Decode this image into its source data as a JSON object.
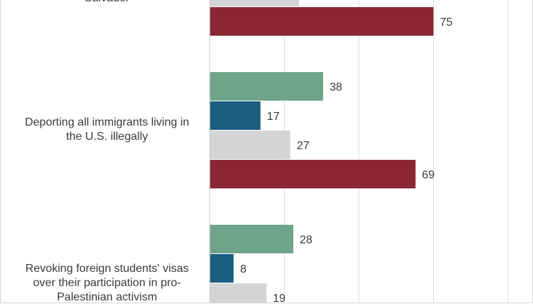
{
  "chart_data": {
    "type": "bar",
    "orientation": "horizontal",
    "categories": [
      "Salvador",
      "Deporting all immigrants living in\nthe U.S. illegally",
      "Revoking foreign students' visas\nover their participation in pro-\nPalestinian activism"
    ],
    "series": [
      {
        "color": "#6fa48a",
        "values": [
          null,
          38,
          28
        ]
      },
      {
        "color": "#1a5e80",
        "values": [
          null,
          17,
          8
        ]
      },
      {
        "color": "#d4d4d4",
        "values": [
          null,
          27,
          19
        ]
      },
      {
        "color": "#8b2634",
        "values": [
          75,
          69,
          null
        ]
      }
    ],
    "xlim": [
      0,
      100
    ],
    "grid": true,
    "visible_partial": {
      "category": "Salvador",
      "partial_grey_bar_visible": true
    }
  }
}
